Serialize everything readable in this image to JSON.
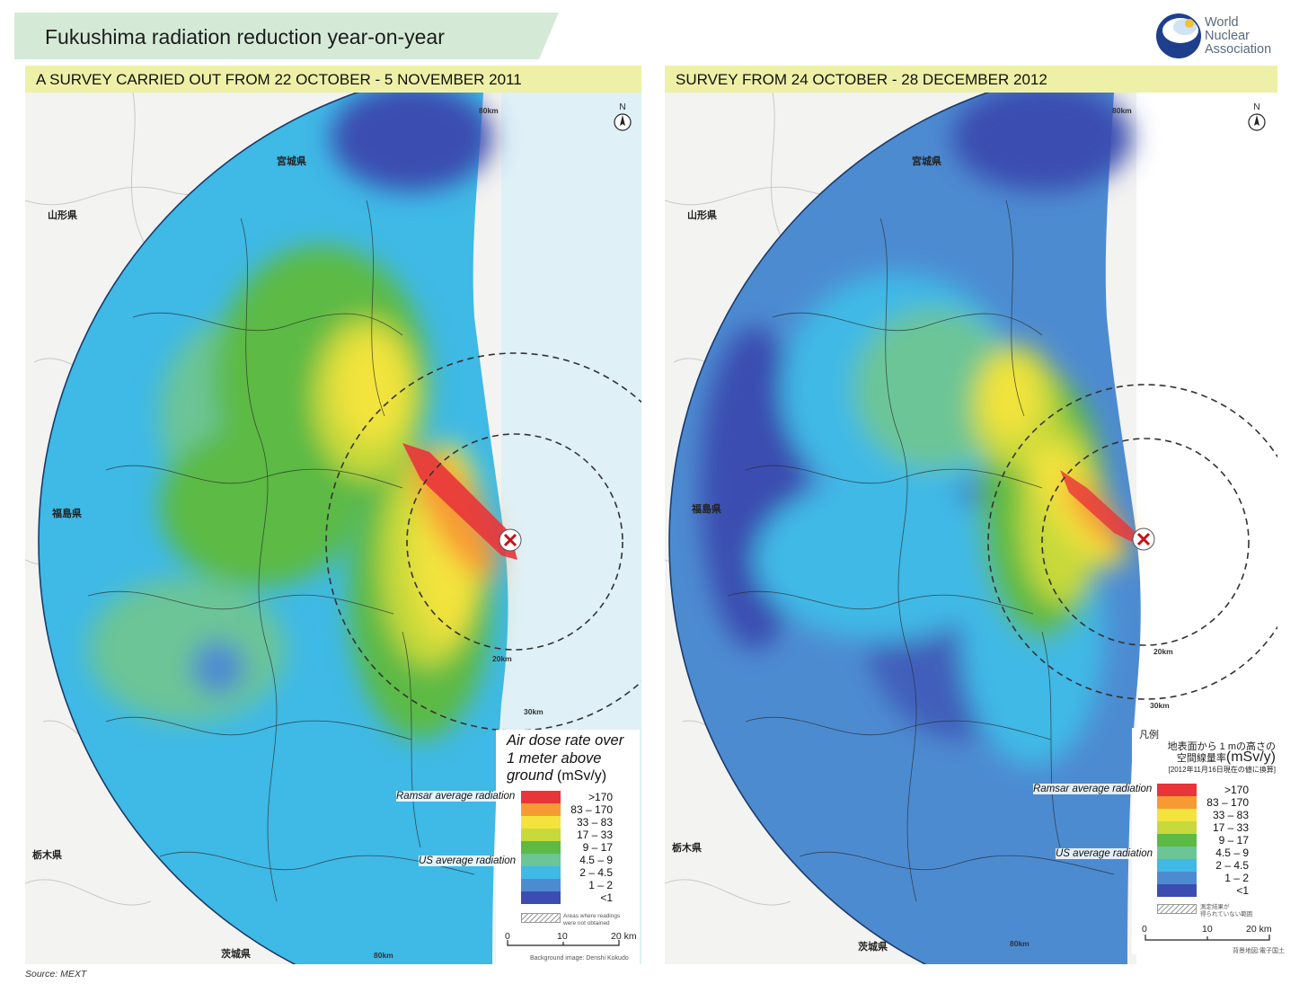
{
  "title": "Fukushima radiation reduction year-on-year",
  "logo": {
    "name": "World Nuclear Association",
    "lines": [
      "World",
      "Nuclear",
      "Association"
    ]
  },
  "source": "Source: MEXT",
  "legend_colors": {
    "gt170": "#e8353a",
    "83_170": "#f79a34",
    "33_83": "#f3e33c",
    "17_33": "#c7d93b",
    "9_17": "#5cba45",
    "4_5_9": "#6cc596",
    "2_4_5": "#3fb9e6",
    "1_2": "#4d8bd1",
    "lt1": "#3b4db0"
  },
  "left": {
    "header": "A SURVEY CARRIED OUT FROM 22 OCTOBER - 5 NOVEMBER 2011",
    "legend_title_lines": [
      "Air dose rate over",
      "1 meter above",
      "ground"
    ],
    "legend_unit": "(mSv/y)",
    "legend_labels": [
      ">170",
      "83 – 170",
      "33 – 83",
      "17 – 33",
      "9 – 17",
      "4.5 – 9",
      "2 – 4.5",
      "1 – 2",
      "<1"
    ],
    "ramsar_label": "Ramsar average radiation",
    "us_label": "US average radiation",
    "hatch_note_lines": [
      "Areas where readings",
      "were not obtained"
    ],
    "scale_labels": [
      "0",
      "10",
      "20 km"
    ],
    "background_note": "Background image: Denshi Kokudo",
    "rings": [
      "80km",
      "30km",
      "20km",
      "80km"
    ],
    "places": [
      "宮城県",
      "山形県",
      "福島県",
      "栃木県",
      "茨城県"
    ]
  },
  "right": {
    "header": "SURVEY FROM 24 OCTOBER - 28 DECEMBER 2012",
    "legend_title_lines": [
      "凡例",
      "地表面から 1 mの高さの",
      "空間線量率"
    ],
    "legend_unit": "(mSv/y)",
    "legend_subnote": "[2012年11月16日現在の値に換算]",
    "legend_labels": [
      ">170",
      "83 – 170",
      "33 – 83",
      "17 – 33",
      "9 – 17",
      "4.5 – 9",
      "2 – 4.5",
      "1 – 2",
      "<1"
    ],
    "ramsar_label": "Ramsar average radiation",
    "us_label": "US average radiation",
    "hatch_note_lines": [
      "測定結果が",
      "得られていない範囲"
    ],
    "scale_labels": [
      "0",
      "10",
      "20 km"
    ],
    "background_note": "背景地図:電子国土",
    "rings": [
      "80km",
      "30km",
      "20km",
      "80km"
    ],
    "places": [
      "宮城県",
      "山形県",
      "福島県",
      "栃木県",
      "茨城県"
    ]
  }
}
